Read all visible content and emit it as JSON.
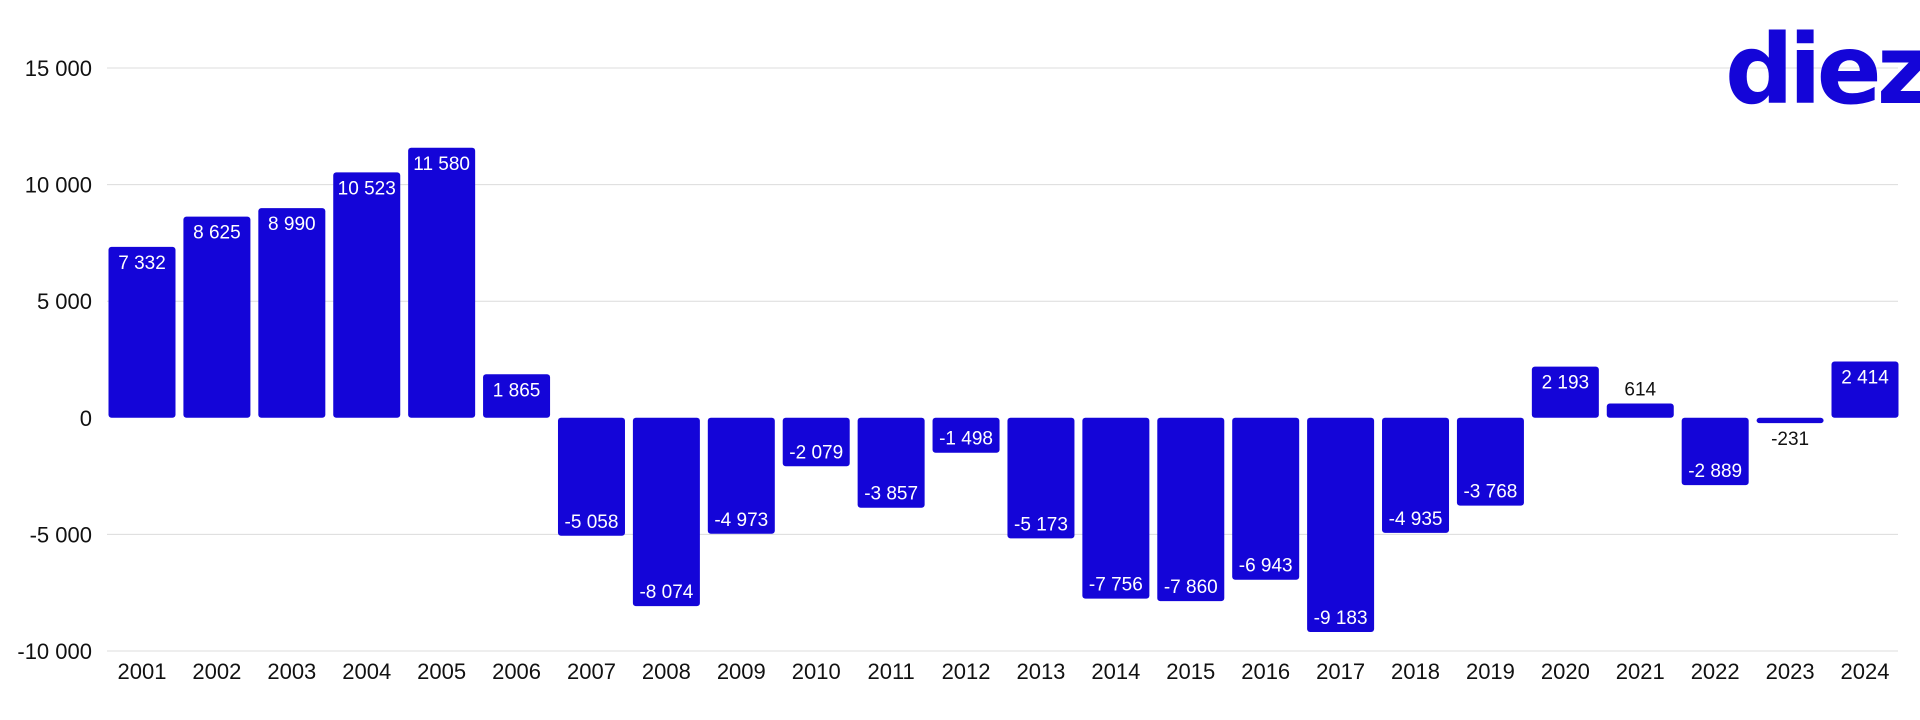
{
  "brand": {
    "logo_text": "diez",
    "color": "#1405d8"
  },
  "chart_data": {
    "type": "bar",
    "title": "",
    "xlabel": "",
    "ylabel": "",
    "ylim": [
      -10000,
      15000
    ],
    "yticks": [
      15000,
      10000,
      5000,
      0,
      -5000,
      -10000
    ],
    "ytick_labels": [
      "15 000",
      "10 000",
      "5 000",
      "0",
      "-5 000",
      "-10 000"
    ],
    "grid": true,
    "bar_color": "#1405d8",
    "categories": [
      "2001",
      "2002",
      "2003",
      "2004",
      "2005",
      "2006",
      "2007",
      "2008",
      "2009",
      "2010",
      "2011",
      "2012",
      "2013",
      "2014",
      "2015",
      "2016",
      "2017",
      "2018",
      "2019",
      "2020",
      "2021",
      "2022",
      "2023",
      "2024"
    ],
    "values": [
      7332,
      8625,
      8990,
      10523,
      11580,
      1865,
      -5058,
      -8074,
      -4973,
      -2079,
      -3857,
      -1498,
      -5173,
      -7756,
      -7860,
      -6943,
      -9183,
      -4935,
      -3768,
      2193,
      614,
      -2889,
      -231,
      2414
    ],
    "value_labels": [
      "7 332",
      "8 625",
      "8 990",
      "10 523",
      "11 580",
      "1 865",
      "-5 058",
      "-8 074",
      "-4 973",
      "-2 079",
      "-3 857",
      "-1 498",
      "-5 173",
      "-7 756",
      "-7 860",
      "-6 943",
      "-9 183",
      "-4 935",
      "-3 768",
      "2 193",
      "614",
      "-2 889",
      "-231",
      "2 414"
    ]
  }
}
